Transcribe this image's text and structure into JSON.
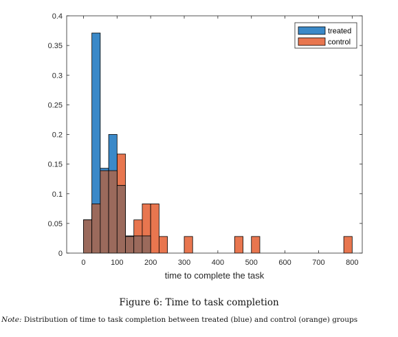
{
  "chart_data": {
    "type": "bar",
    "subtype": "overlapping-histogram",
    "title": "",
    "xlabel": "time to complete the task",
    "ylabel": "",
    "xlim": [
      -50,
      830
    ],
    "ylim": [
      0,
      0.4
    ],
    "xticks": [
      0,
      100,
      200,
      300,
      400,
      500,
      600,
      700,
      800
    ],
    "xtick_labels": [
      "0",
      "100",
      "200",
      "300",
      "400",
      "500",
      "600",
      "700",
      "800"
    ],
    "yticks": [
      0,
      0.05,
      0.1,
      0.15,
      0.2,
      0.25,
      0.3,
      0.35,
      0.4
    ],
    "ytick_labels": [
      "0",
      "0.05",
      "0.1",
      "0.15",
      "0.2",
      "0.25",
      "0.3",
      "0.35",
      "0.4"
    ],
    "grid": false,
    "legend_position": "top-right",
    "colors": {
      "treated": "#3b89c8",
      "control": "#e8764f",
      "overlap": "#9b6a5c"
    },
    "series": [
      {
        "name": "treated",
        "bins": [
          {
            "x0": 0,
            "x1": 25,
            "value": 0.056
          },
          {
            "x0": 25,
            "x1": 50,
            "value": 0.371
          },
          {
            "x0": 50,
            "x1": 75,
            "value": 0.143
          },
          {
            "x0": 75,
            "x1": 100,
            "value": 0.2
          },
          {
            "x0": 100,
            "x1": 125,
            "value": 0.114
          },
          {
            "x0": 125,
            "x1": 150,
            "value": 0.029
          },
          {
            "x0": 150,
            "x1": 175,
            "value": 0.029
          },
          {
            "x0": 175,
            "x1": 200,
            "value": 0.029
          }
        ]
      },
      {
        "name": "control",
        "bins": [
          {
            "x0": 0,
            "x1": 25,
            "value": 0.056
          },
          {
            "x0": 25,
            "x1": 50,
            "value": 0.083
          },
          {
            "x0": 50,
            "x1": 75,
            "value": 0.139
          },
          {
            "x0": 75,
            "x1": 100,
            "value": 0.139
          },
          {
            "x0": 100,
            "x1": 125,
            "value": 0.167
          },
          {
            "x0": 125,
            "x1": 150,
            "value": 0.028
          },
          {
            "x0": 150,
            "x1": 175,
            "value": 0.056
          },
          {
            "x0": 175,
            "x1": 200,
            "value": 0.083
          },
          {
            "x0": 200,
            "x1": 225,
            "value": 0.083
          },
          {
            "x0": 225,
            "x1": 250,
            "value": 0.028
          },
          {
            "x0": 300,
            "x1": 325,
            "value": 0.028
          },
          {
            "x0": 450,
            "x1": 475,
            "value": 0.028
          },
          {
            "x0": 500,
            "x1": 525,
            "value": 0.028
          },
          {
            "x0": 775,
            "x1": 800,
            "value": 0.028
          }
        ]
      }
    ]
  },
  "figure": {
    "caption": "Figure 6: Time to task completion",
    "note_label": "Note:",
    "note_text": " Distribution of time to task completion between treated (blue) and control (orange) groups"
  }
}
